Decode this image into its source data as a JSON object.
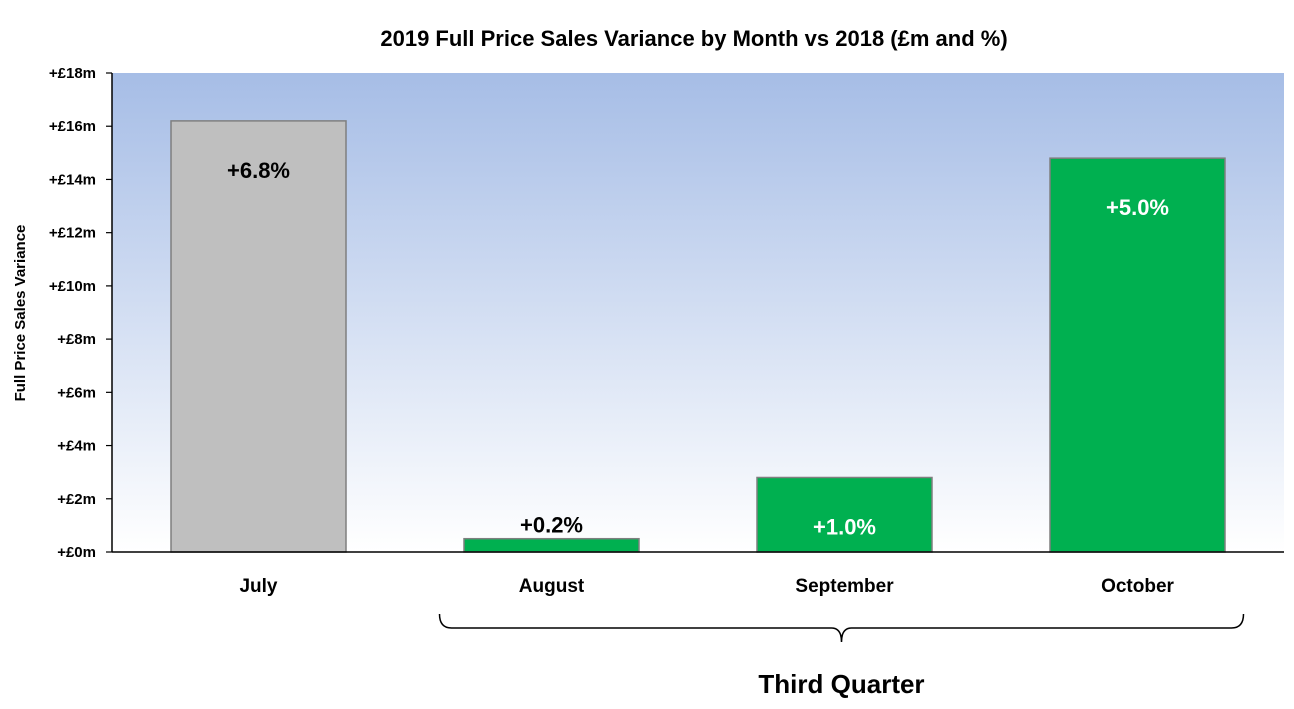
{
  "chart_data": {
    "type": "bar",
    "title": "2019 Full Price Sales Variance by Month vs 2018  (£m and %)",
    "xlabel": "",
    "ylabel": "Full Price Sales Variance",
    "categories": [
      "July",
      "August",
      "September",
      "October"
    ],
    "values": [
      16.2,
      0.5,
      2.8,
      14.8
    ],
    "data_labels": [
      "+6.8%",
      "+0.2%",
      "+1.0%",
      "+5.0%"
    ],
    "bar_colors": [
      "#bfbfbf",
      "#00b050",
      "#00b050",
      "#00b050"
    ],
    "label_colors": [
      "#000000",
      "#000000",
      "#ffffff",
      "#ffffff"
    ],
    "ylim": [
      0,
      18
    ],
    "yticks": [
      0,
      2,
      4,
      6,
      8,
      10,
      12,
      14,
      16,
      18
    ],
    "ytick_labels": [
      "+£0m",
      "+£2m",
      "+£4m",
      "+£6m",
      "+£8m",
      "+£10m",
      "+£12m",
      "+£14m",
      "+£16m",
      "+£18m"
    ],
    "grid": false,
    "background_gradient": [
      "#a6bde6",
      "#ffffff"
    ],
    "bracket": {
      "label": "Third Quarter",
      "spans_categories": [
        "August",
        "September",
        "October"
      ]
    }
  }
}
